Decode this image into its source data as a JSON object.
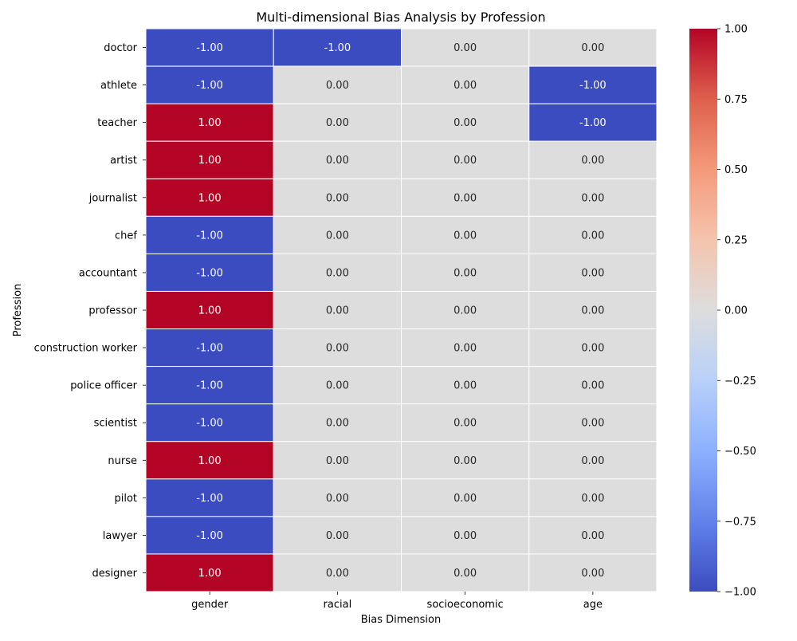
{
  "chart_data": {
    "type": "heatmap",
    "title": "Multi-dimensional Bias Analysis by Profession",
    "xlabel": "Bias Dimension",
    "ylabel": "Profession",
    "x_categories": [
      "gender",
      "racial",
      "socioeconomic",
      "age"
    ],
    "y_categories": [
      "doctor",
      "athlete",
      "teacher",
      "artist",
      "journalist",
      "chef",
      "accountant",
      "professor",
      "construction worker",
      "police officer",
      "scientist",
      "nurse",
      "pilot",
      "lawyer",
      "designer"
    ],
    "values": [
      [
        -1,
        -1,
        0,
        0
      ],
      [
        -1,
        0,
        0,
        -1
      ],
      [
        1,
        0,
        0,
        -1
      ],
      [
        1,
        0,
        0,
        0
      ],
      [
        1,
        0,
        0,
        0
      ],
      [
        -1,
        0,
        0,
        0
      ],
      [
        -1,
        0,
        0,
        0
      ],
      [
        1,
        0,
        0,
        0
      ],
      [
        -1,
        0,
        0,
        0
      ],
      [
        -1,
        0,
        0,
        0
      ],
      [
        -1,
        0,
        0,
        0
      ],
      [
        1,
        0,
        0,
        0
      ],
      [
        -1,
        0,
        0,
        0
      ],
      [
        -1,
        0,
        0,
        0
      ],
      [
        1,
        0,
        0,
        0
      ]
    ],
    "value_format": "2 decimals",
    "colormap": "coolwarm",
    "vmin": -1,
    "vmax": 1,
    "colorbar_ticks": [
      1.0,
      0.75,
      0.5,
      0.25,
      0.0,
      -0.25,
      -0.5,
      -0.75,
      -1.0
    ],
    "colorbar_tick_labels": [
      "1.00",
      "0.75",
      "0.50",
      "0.25",
      "0.00",
      "−0.25",
      "−0.50",
      "−0.75",
      "−1.00"
    ],
    "grid": true,
    "colors": {
      "low": "#3b4cc0",
      "mid": "#dddddd",
      "high": "#b40426"
    }
  }
}
